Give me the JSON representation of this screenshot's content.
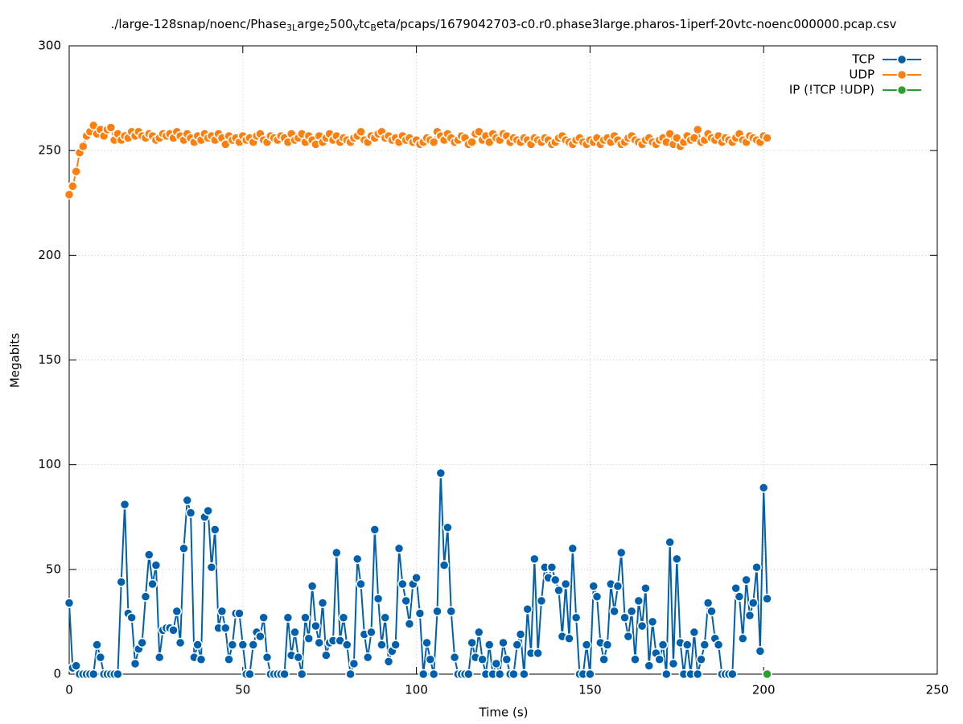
{
  "chart_data": {
    "type": "line",
    "title": [
      "./large-128snap/noenc/Phase",
      "3L",
      "arge",
      "2",
      "500",
      "V",
      "tc",
      "B",
      "eta/pcaps/1679042703-c0.r0.phase3large.pharos-1iperf-20vtc-noenc000000.pcap.csv"
    ],
    "xlabel": "Time (s)",
    "ylabel": "Megabits",
    "xlim": [
      0,
      250
    ],
    "xticks": [
      0,
      50,
      100,
      150,
      200,
      250
    ],
    "ylim": [
      0,
      300
    ],
    "yticks": [
      0,
      50,
      100,
      150,
      200,
      250,
      300
    ],
    "grid": true,
    "legend": "top-right",
    "x": [
      0,
      1,
      2,
      3,
      4,
      5,
      6,
      7,
      8,
      9,
      10,
      11,
      12,
      13,
      14,
      15,
      16,
      17,
      18,
      19,
      20,
      21,
      22,
      23,
      24,
      25,
      26,
      27,
      28,
      29,
      30,
      31,
      32,
      33,
      34,
      35,
      36,
      37,
      38,
      39,
      40,
      41,
      42,
      43,
      44,
      45,
      46,
      47,
      48,
      49,
      50,
      51,
      52,
      53,
      54,
      55,
      56,
      57,
      58,
      59,
      60,
      61,
      62,
      63,
      64,
      65,
      66,
      67,
      68,
      69,
      70,
      71,
      72,
      73,
      74,
      75,
      76,
      77,
      78,
      79,
      80,
      81,
      82,
      83,
      84,
      85,
      86,
      87,
      88,
      89,
      90,
      91,
      92,
      93,
      94,
      95,
      96,
      97,
      98,
      99,
      100,
      101,
      102,
      103,
      104,
      105,
      106,
      107,
      108,
      109,
      110,
      111,
      112,
      113,
      114,
      115,
      116,
      117,
      118,
      119,
      120,
      121,
      122,
      123,
      124,
      125,
      126,
      127,
      128,
      129,
      130,
      131,
      132,
      133,
      134,
      135,
      136,
      137,
      138,
      139,
      140,
      141,
      142,
      143,
      144,
      145,
      146,
      147,
      148,
      149,
      150,
      151,
      152,
      153,
      154,
      155,
      156,
      157,
      158,
      159,
      160,
      161,
      162,
      163,
      164,
      165,
      166,
      167,
      168,
      169,
      170,
      171,
      172,
      173,
      174,
      175,
      176,
      177,
      178,
      179,
      180,
      181,
      182,
      183,
      184,
      185,
      186,
      187,
      188,
      189,
      190,
      191,
      192,
      193,
      194,
      195,
      196,
      197,
      198,
      199,
      200,
      201
    ],
    "series": [
      {
        "name": "TCP",
        "color": "#0060ad",
        "values": [
          34,
          3,
          4,
          0,
          0,
          0,
          0,
          0,
          14,
          8,
          0,
          0,
          0,
          0,
          0,
          44,
          81,
          29,
          27,
          5,
          12,
          15,
          37,
          57,
          43,
          52,
          8,
          21,
          22,
          22,
          21,
          30,
          15,
          60,
          83,
          77,
          8,
          14,
          7,
          75,
          78,
          51,
          69,
          22,
          30,
          22,
          7,
          14,
          29,
          29,
          14,
          0,
          0,
          14,
          20,
          18,
          27,
          8,
          0,
          0,
          0,
          0,
          0,
          27,
          9,
          20,
          8,
          0,
          27,
          17,
          42,
          23,
          15,
          34,
          9,
          15,
          16,
          58,
          16,
          27,
          14,
          0,
          5,
          55,
          43,
          19,
          8,
          20,
          69,
          36,
          14,
          27,
          6,
          11,
          14,
          60,
          43,
          35,
          24,
          43,
          46,
          29,
          0,
          15,
          7,
          0,
          30,
          96,
          52,
          70,
          30,
          8,
          0,
          0,
          0,
          0,
          15,
          8,
          20,
          7,
          0,
          14,
          0,
          5,
          0,
          15,
          7,
          0,
          0,
          14,
          19,
          0,
          31,
          10,
          55,
          10,
          35,
          51,
          46,
          51,
          45,
          40,
          18,
          43,
          17,
          60,
          27,
          0,
          0,
          14,
          0,
          42,
          37,
          15,
          7,
          14,
          43,
          30,
          42,
          58,
          27,
          18,
          30,
          7,
          35,
          23,
          41,
          4,
          25,
          10,
          7,
          14,
          0,
          63,
          5,
          55,
          15,
          0,
          14,
          0,
          20,
          0,
          7,
          14,
          34,
          30,
          17,
          14,
          0,
          0,
          0,
          0,
          41,
          37,
          17,
          45,
          28,
          34,
          51,
          11,
          89,
          36
        ]
      },
      {
        "name": "UDP",
        "color": "#ff7f0e",
        "values": [
          229,
          233,
          240,
          249,
          252,
          257,
          259,
          262,
          258,
          260,
          257,
          260,
          261,
          255,
          258,
          255,
          257,
          256,
          259,
          257,
          259,
          257,
          256,
          258,
          257,
          255,
          256,
          258,
          257,
          258,
          256,
          259,
          257,
          255,
          258,
          256,
          254,
          257,
          255,
          258,
          256,
          257,
          255,
          258,
          256,
          253,
          257,
          255,
          256,
          254,
          257,
          255,
          256,
          254,
          257,
          258,
          255,
          254,
          257,
          256,
          255,
          257,
          256,
          254,
          258,
          255,
          256,
          258,
          254,
          257,
          255,
          253,
          257,
          254,
          256,
          258,
          255,
          257,
          254,
          256,
          255,
          254,
          256,
          257,
          259,
          255,
          254,
          257,
          256,
          258,
          259,
          256,
          257,
          255,
          256,
          254,
          257,
          255,
          256,
          254,
          255,
          253,
          254,
          256,
          255,
          254,
          259,
          257,
          255,
          258,
          256,
          254,
          255,
          257,
          256,
          253,
          254,
          258,
          259,
          255,
          257,
          254,
          258,
          256,
          255,
          258,
          257,
          254,
          256,
          255,
          254,
          256,
          255,
          253,
          256,
          255,
          254,
          256,
          255,
          253,
          254,
          256,
          257,
          255,
          254,
          253,
          255,
          256,
          254,
          253,
          255,
          254,
          256,
          253,
          255,
          256,
          254,
          257,
          255,
          253,
          254,
          256,
          257,
          255,
          254,
          253,
          255,
          256,
          254,
          253,
          255,
          256,
          254,
          258,
          253,
          256,
          252,
          254,
          257,
          255,
          256,
          260,
          254,
          255,
          258,
          256,
          255,
          257,
          254,
          256,
          255,
          254,
          256,
          258,
          255,
          254,
          257,
          256,
          255,
          254,
          257,
          256
        ]
      },
      {
        "name": "IP (!TCP  !UDP)",
        "color": "#2ca02c",
        "x": [
          201
        ],
        "values": [
          0
        ]
      }
    ]
  }
}
